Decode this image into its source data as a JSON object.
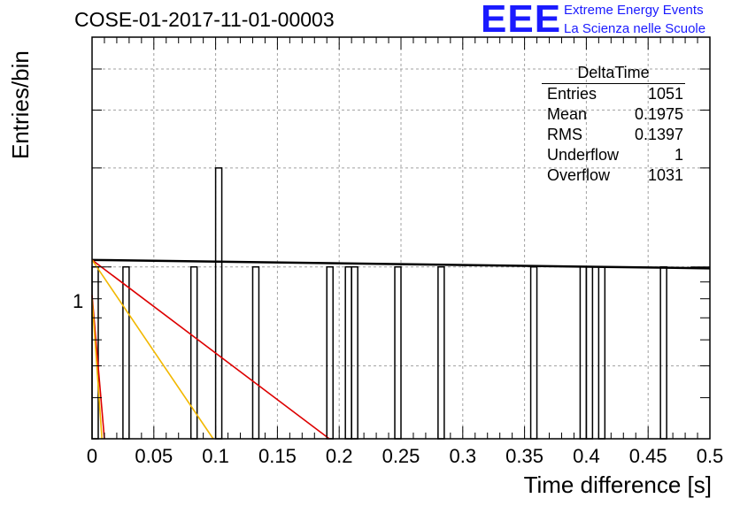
{
  "header": {
    "run_title": "COSE-01-2017-11-01-00003",
    "logo_text": "EEE",
    "logo_line1": "Extreme Energy Events",
    "logo_line2": "La Scienza nelle Scuole"
  },
  "stats_box": {
    "title": "DeltaTime",
    "rows": [
      {
        "label": "Entries",
        "value": "1051"
      },
      {
        "label": "Mean",
        "value": "0.1975"
      },
      {
        "label": "RMS",
        "value": "0.1397"
      },
      {
        "label": "Underflow",
        "value": "1"
      },
      {
        "label": "Overflow",
        "value": "1031"
      }
    ]
  },
  "colors": {
    "histogram": "#000000",
    "fit_black": "#000000",
    "fit_red": "#dd0000",
    "fit_orange": "#f2b800",
    "grid": "#a0a0a0",
    "logo": "#1a1aff"
  },
  "chart_data": {
    "type": "bar",
    "ylog": true,
    "xlabel": "Time difference [s]",
    "ylabel": "Entries/bin",
    "xlim": [
      0,
      0.5
    ],
    "ylim": [
      0.3,
      5
    ],
    "x_tick_labels": [
      "0",
      "0.05",
      "0.1",
      "0.15",
      "0.2",
      "0.25",
      "0.3",
      "0.35",
      "0.4",
      "0.45",
      "0.5"
    ],
    "y_tick_labels": [
      "1"
    ],
    "bin_width": 0.005,
    "bins": [
      {
        "x": 0.0,
        "value": 1
      },
      {
        "x": 0.025,
        "value": 1
      },
      {
        "x": 0.08,
        "value": 1
      },
      {
        "x": 0.1,
        "value": 2
      },
      {
        "x": 0.13,
        "value": 1
      },
      {
        "x": 0.19,
        "value": 1
      },
      {
        "x": 0.205,
        "value": 1
      },
      {
        "x": 0.21,
        "value": 1
      },
      {
        "x": 0.245,
        "value": 1
      },
      {
        "x": 0.28,
        "value": 1
      },
      {
        "x": 0.355,
        "value": 1
      },
      {
        "x": 0.395,
        "value": 1
      },
      {
        "x": 0.4,
        "value": 1
      },
      {
        "x": 0.41,
        "value": 1
      },
      {
        "x": 0.46,
        "value": 1
      }
    ],
    "fit_lines": [
      {
        "color": "black",
        "points": [
          [
            0.0,
            1.05
          ],
          [
            0.5,
            0.99
          ]
        ]
      },
      {
        "color": "red",
        "points": [
          [
            0.0,
            1.05
          ],
          [
            0.192,
            0.3
          ]
        ]
      },
      {
        "color": "orange",
        "points": [
          [
            0.0,
            1.05
          ],
          [
            0.098,
            0.3
          ]
        ]
      },
      {
        "color": "red",
        "points": [
          [
            0.0,
            0.82
          ],
          [
            0.01,
            0.3
          ]
        ]
      },
      {
        "color": "orange",
        "points": [
          [
            0.0,
            0.8
          ],
          [
            0.008,
            0.3
          ]
        ]
      }
    ]
  }
}
